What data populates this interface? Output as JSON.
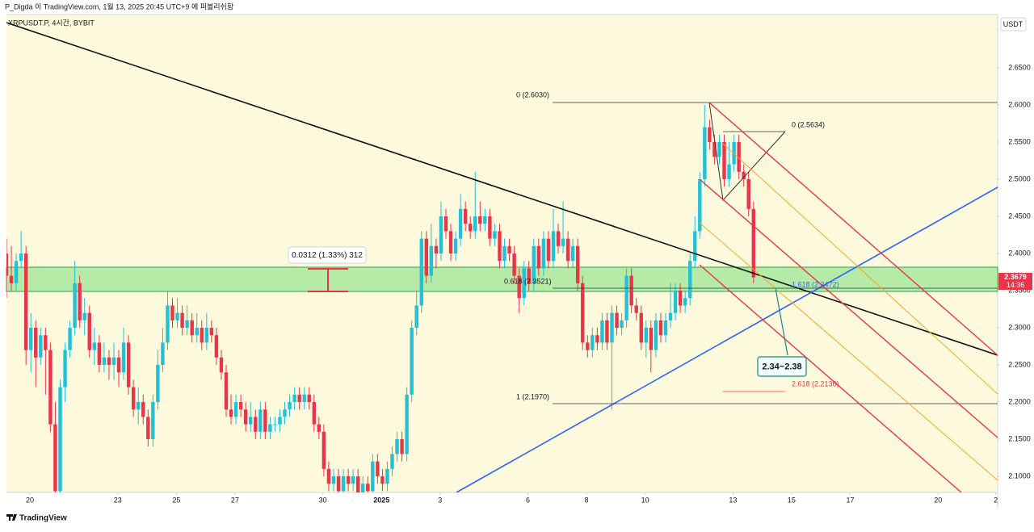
{
  "header": "P_Digda 이 TradingView.com, 1월 13, 2025 20:45 UTC+9 에 퍼블리쉬함",
  "footer": "TradingView",
  "chart_data": {
    "type": "candlestick",
    "title": "XRPUSDT.P, 4시간, BYBIT",
    "currency": "USDT",
    "countdown": "14:36",
    "up_color": "#22c1d6",
    "down_color": "#e8354a",
    "background": "#fdf9dd",
    "x": [
      0,
      1,
      2,
      3,
      4,
      5,
      6,
      7,
      8,
      9,
      10,
      11,
      12,
      13,
      14,
      15,
      16,
      17,
      18,
      19,
      20,
      21,
      22,
      23,
      24,
      25,
      26,
      27,
      28,
      29,
      30,
      31,
      32,
      33,
      34,
      35,
      36,
      37,
      38,
      39,
      40,
      41,
      42,
      43,
      44,
      45,
      46,
      47,
      48,
      49,
      50,
      51,
      52,
      53,
      54,
      55,
      56,
      57,
      58,
      59,
      60,
      61,
      62,
      63,
      64,
      65,
      66,
      67,
      68,
      69,
      70,
      71,
      72,
      73,
      74,
      75,
      76,
      77,
      78,
      79,
      80,
      81,
      82,
      83,
      84,
      85,
      86,
      87,
      88,
      89,
      90,
      91,
      92,
      93,
      94,
      95,
      96,
      97,
      98,
      99,
      100,
      101,
      102,
      103,
      104,
      105,
      106,
      107,
      108,
      109,
      110,
      111,
      112,
      113,
      114,
      115,
      116,
      117,
      118,
      119,
      120,
      121,
      122,
      123,
      124,
      125,
      126,
      127,
      128,
      129,
      130,
      131,
      132,
      133,
      134,
      135,
      136,
      137,
      138,
      139,
      140,
      141,
      142,
      143,
      144,
      145,
      146,
      147,
      148,
      149,
      150,
      151,
      152,
      153
    ],
    "open": [
      2.4,
      2.37,
      2.36,
      2.39,
      2.4,
      2.27,
      2.3,
      2.26,
      2.29,
      2.27,
      2.17,
      2.08,
      2.22,
      2.27,
      2.3,
      2.36,
      2.31,
      2.32,
      2.27,
      2.28,
      2.25,
      2.26,
      2.25,
      2.26,
      2.24,
      2.28,
      2.22,
      2.19,
      2.2,
      2.18,
      2.15,
      2.2,
      2.25,
      2.28,
      2.33,
      2.31,
      2.32,
      2.3,
      2.31,
      2.29,
      2.3,
      2.28,
      2.3,
      2.29,
      2.26,
      2.24,
      2.19,
      2.18,
      2.2,
      2.19,
      2.17,
      2.18,
      2.16,
      2.19,
      2.16,
      2.17,
      2.17,
      2.18,
      2.19,
      2.2,
      2.21,
      2.2,
      2.21,
      2.2,
      2.17,
      2.16,
      2.11,
      2.09,
      2.1,
      2.08,
      2.1,
      2.09,
      2.1,
      2.07,
      2.09,
      2.08,
      2.12,
      2.1,
      2.09,
      2.11,
      2.13,
      2.15,
      2.13,
      2.21,
      2.3,
      2.33,
      2.42,
      2.37,
      2.41,
      2.4,
      2.45,
      2.43,
      2.4,
      2.42,
      2.46,
      2.44,
      2.43,
      2.45,
      2.44,
      2.45,
      2.42,
      2.43,
      2.39,
      2.41,
      2.4,
      2.37,
      2.34,
      2.38,
      2.36,
      2.41,
      2.38,
      2.42,
      2.39,
      2.43,
      2.41,
      2.42,
      2.39,
      2.41,
      2.36,
      2.28,
      2.27,
      2.29,
      2.28,
      2.31,
      2.28,
      2.32,
      2.3,
      2.31,
      2.37,
      2.33,
      2.32,
      2.28,
      2.3,
      2.27,
      2.31,
      2.29,
      2.31,
      2.32,
      2.35,
      2.33,
      2.34,
      2.39,
      2.43,
      2.5,
      2.57,
      2.55,
      2.53,
      2.55,
      2.5,
      2.52,
      2.55,
      2.51,
      2.5,
      2.46
    ],
    "high": [
      2.42,
      2.41,
      2.4,
      2.43,
      2.41,
      2.32,
      2.31,
      2.3,
      2.3,
      2.28,
      2.2,
      2.23,
      2.28,
      2.31,
      2.39,
      2.37,
      2.34,
      2.33,
      2.3,
      2.29,
      2.28,
      2.27,
      2.28,
      2.27,
      2.3,
      2.29,
      2.23,
      2.22,
      2.21,
      2.19,
      2.21,
      2.27,
      2.3,
      2.35,
      2.34,
      2.34,
      2.33,
      2.33,
      2.32,
      2.32,
      2.31,
      2.32,
      2.31,
      2.3,
      2.27,
      2.25,
      2.21,
      2.21,
      2.21,
      2.2,
      2.2,
      2.19,
      2.2,
      2.2,
      2.18,
      2.18,
      2.19,
      2.2,
      2.21,
      2.22,
      2.22,
      2.22,
      2.22,
      2.21,
      2.18,
      2.17,
      2.12,
      2.11,
      2.11,
      2.11,
      2.11,
      2.11,
      2.11,
      2.1,
      2.1,
      2.13,
      2.13,
      2.11,
      2.12,
      2.14,
      2.16,
      2.16,
      2.22,
      2.31,
      2.35,
      2.43,
      2.43,
      2.44,
      2.42,
      2.47,
      2.46,
      2.44,
      2.43,
      2.48,
      2.47,
      2.45,
      2.51,
      2.47,
      2.46,
      2.46,
      2.44,
      2.44,
      2.42,
      2.42,
      2.41,
      2.38,
      2.39,
      2.39,
      2.42,
      2.42,
      2.43,
      2.43,
      2.46,
      2.44,
      2.47,
      2.43,
      2.42,
      2.42,
      2.37,
      2.29,
      2.3,
      2.3,
      2.32,
      2.32,
      2.33,
      2.33,
      2.32,
      2.38,
      2.38,
      2.34,
      2.33,
      2.31,
      2.31,
      2.32,
      2.32,
      2.32,
      2.36,
      2.36,
      2.36,
      2.35,
      2.4,
      2.45,
      2.51,
      2.6,
      2.58,
      2.56,
      2.56,
      2.56,
      2.55,
      2.56,
      2.56,
      2.52,
      2.51,
      2.47
    ],
    "low": [
      2.34,
      2.35,
      2.35,
      2.38,
      2.25,
      2.24,
      2.22,
      2.25,
      2.21,
      2.16,
      2.07,
      2.07,
      2.2,
      2.26,
      2.29,
      2.3,
      2.29,
      2.26,
      2.25,
      2.24,
      2.24,
      2.23,
      2.23,
      2.22,
      2.23,
      2.21,
      2.18,
      2.17,
      2.17,
      2.14,
      2.14,
      2.19,
      2.24,
      2.27,
      2.3,
      2.3,
      2.29,
      2.29,
      2.28,
      2.28,
      2.27,
      2.27,
      2.28,
      2.25,
      2.23,
      2.18,
      2.17,
      2.17,
      2.18,
      2.16,
      2.16,
      2.15,
      2.15,
      2.15,
      2.15,
      2.16,
      2.16,
      2.17,
      2.18,
      2.19,
      2.19,
      2.19,
      2.19,
      2.16,
      2.15,
      2.1,
      2.08,
      2.08,
      2.07,
      2.07,
      2.08,
      2.08,
      2.06,
      2.06,
      2.07,
      2.07,
      2.09,
      2.08,
      2.08,
      2.1,
      2.12,
      2.12,
      2.12,
      2.2,
      2.29,
      2.32,
      2.36,
      2.36,
      2.38,
      2.39,
      2.42,
      2.39,
      2.39,
      2.41,
      2.43,
      2.42,
      2.42,
      2.43,
      2.43,
      2.41,
      2.41,
      2.38,
      2.38,
      2.39,
      2.36,
      2.32,
      2.33,
      2.35,
      2.35,
      2.37,
      2.37,
      2.38,
      2.38,
      2.4,
      2.4,
      2.38,
      2.38,
      2.35,
      2.27,
      2.26,
      2.26,
      2.27,
      2.27,
      2.27,
      2.19,
      2.29,
      2.29,
      2.3,
      2.32,
      2.31,
      2.27,
      2.26,
      2.24,
      2.26,
      2.28,
      2.28,
      2.3,
      2.31,
      2.32,
      2.32,
      2.33,
      2.38,
      2.42,
      2.49,
      2.54,
      2.52,
      2.52,
      2.49,
      2.49,
      2.51,
      2.5,
      2.49,
      2.45,
      2.36
    ],
    "close": [
      2.37,
      2.36,
      2.39,
      2.4,
      2.27,
      2.3,
      2.26,
      2.29,
      2.27,
      2.17,
      2.08,
      2.22,
      2.27,
      2.3,
      2.36,
      2.31,
      2.32,
      2.27,
      2.28,
      2.25,
      2.26,
      2.25,
      2.26,
      2.24,
      2.28,
      2.22,
      2.19,
      2.2,
      2.18,
      2.15,
      2.2,
      2.25,
      2.28,
      2.33,
      2.31,
      2.32,
      2.3,
      2.31,
      2.29,
      2.3,
      2.28,
      2.3,
      2.29,
      2.26,
      2.24,
      2.19,
      2.18,
      2.2,
      2.19,
      2.17,
      2.18,
      2.16,
      2.19,
      2.16,
      2.17,
      2.17,
      2.18,
      2.19,
      2.2,
      2.21,
      2.2,
      2.21,
      2.2,
      2.17,
      2.16,
      2.11,
      2.09,
      2.1,
      2.08,
      2.1,
      2.09,
      2.1,
      2.07,
      2.09,
      2.08,
      2.12,
      2.1,
      2.09,
      2.11,
      2.13,
      2.15,
      2.13,
      2.21,
      2.3,
      2.33,
      2.42,
      2.37,
      2.41,
      2.4,
      2.45,
      2.43,
      2.4,
      2.42,
      2.46,
      2.44,
      2.43,
      2.45,
      2.44,
      2.45,
      2.42,
      2.43,
      2.39,
      2.41,
      2.4,
      2.37,
      2.34,
      2.38,
      2.36,
      2.41,
      2.38,
      2.42,
      2.39,
      2.43,
      2.41,
      2.42,
      2.39,
      2.41,
      2.36,
      2.28,
      2.27,
      2.29,
      2.28,
      2.31,
      2.28,
      2.32,
      2.3,
      2.31,
      2.37,
      2.33,
      2.32,
      2.28,
      2.3,
      2.27,
      2.31,
      2.29,
      2.31,
      2.32,
      2.35,
      2.33,
      2.34,
      2.39,
      2.43,
      2.5,
      2.57,
      2.55,
      2.53,
      2.55,
      2.5,
      2.52,
      2.55,
      2.51,
      2.5,
      2.46,
      2.3679
    ],
    "xlim": [
      0,
      203
    ],
    "ylim": [
      2.0783,
      2.7217
    ],
    "xticks": [
      {
        "value": 4.8,
        "label": "20"
      },
      {
        "value": 22.8,
        "label": "23"
      },
      {
        "value": 34.8,
        "label": "25"
      },
      {
        "value": 46.8,
        "label": "27"
      },
      {
        "value": 64.8,
        "label": "30"
      },
      {
        "value": 76.8,
        "label": "2025"
      },
      {
        "value": 88.8,
        "label": "3"
      },
      {
        "value": 106.8,
        "label": "6"
      },
      {
        "value": 118.8,
        "label": "8"
      },
      {
        "value": 130.8,
        "label": "10"
      },
      {
        "value": 148.8,
        "label": "13"
      },
      {
        "value": 160.8,
        "label": "15"
      },
      {
        "value": 172.8,
        "label": "17"
      },
      {
        "value": 190.8,
        "label": "20"
      },
      {
        "value": 202.6,
        "label": "2"
      }
    ],
    "yticks": [
      {
        "value": 2.1,
        "label": "2.1000"
      },
      {
        "value": 2.15,
        "label": "2.1500"
      },
      {
        "value": 2.2,
        "label": "2.2000"
      },
      {
        "value": 2.25,
        "label": "2.2500"
      },
      {
        "value": 2.3,
        "label": "2.3000"
      },
      {
        "value": 2.35,
        "label": "2.3500"
      },
      {
        "value": 2.4,
        "label": "2.4000"
      },
      {
        "value": 2.45,
        "label": "2.4500"
      },
      {
        "value": 2.5,
        "label": "2.5000"
      },
      {
        "value": 2.55,
        "label": "2.5500"
      },
      {
        "value": 2.6,
        "label": "2.6000"
      },
      {
        "value": 2.65,
        "label": "2.6500"
      }
    ],
    "annotations": {
      "fib_0_a": "0 (2.6030)",
      "fib_0_b": "0 (2.5634)",
      "fib_0618": "0.618 (2.3521)",
      "fib_1618": "1.618 (2.3472)",
      "fib_1": "1 (2.1970)",
      "fib_2618": "2.618 (2.2136)",
      "target": "2.34~2.38",
      "measure": "0.0312 (1.33%) 312"
    }
  }
}
